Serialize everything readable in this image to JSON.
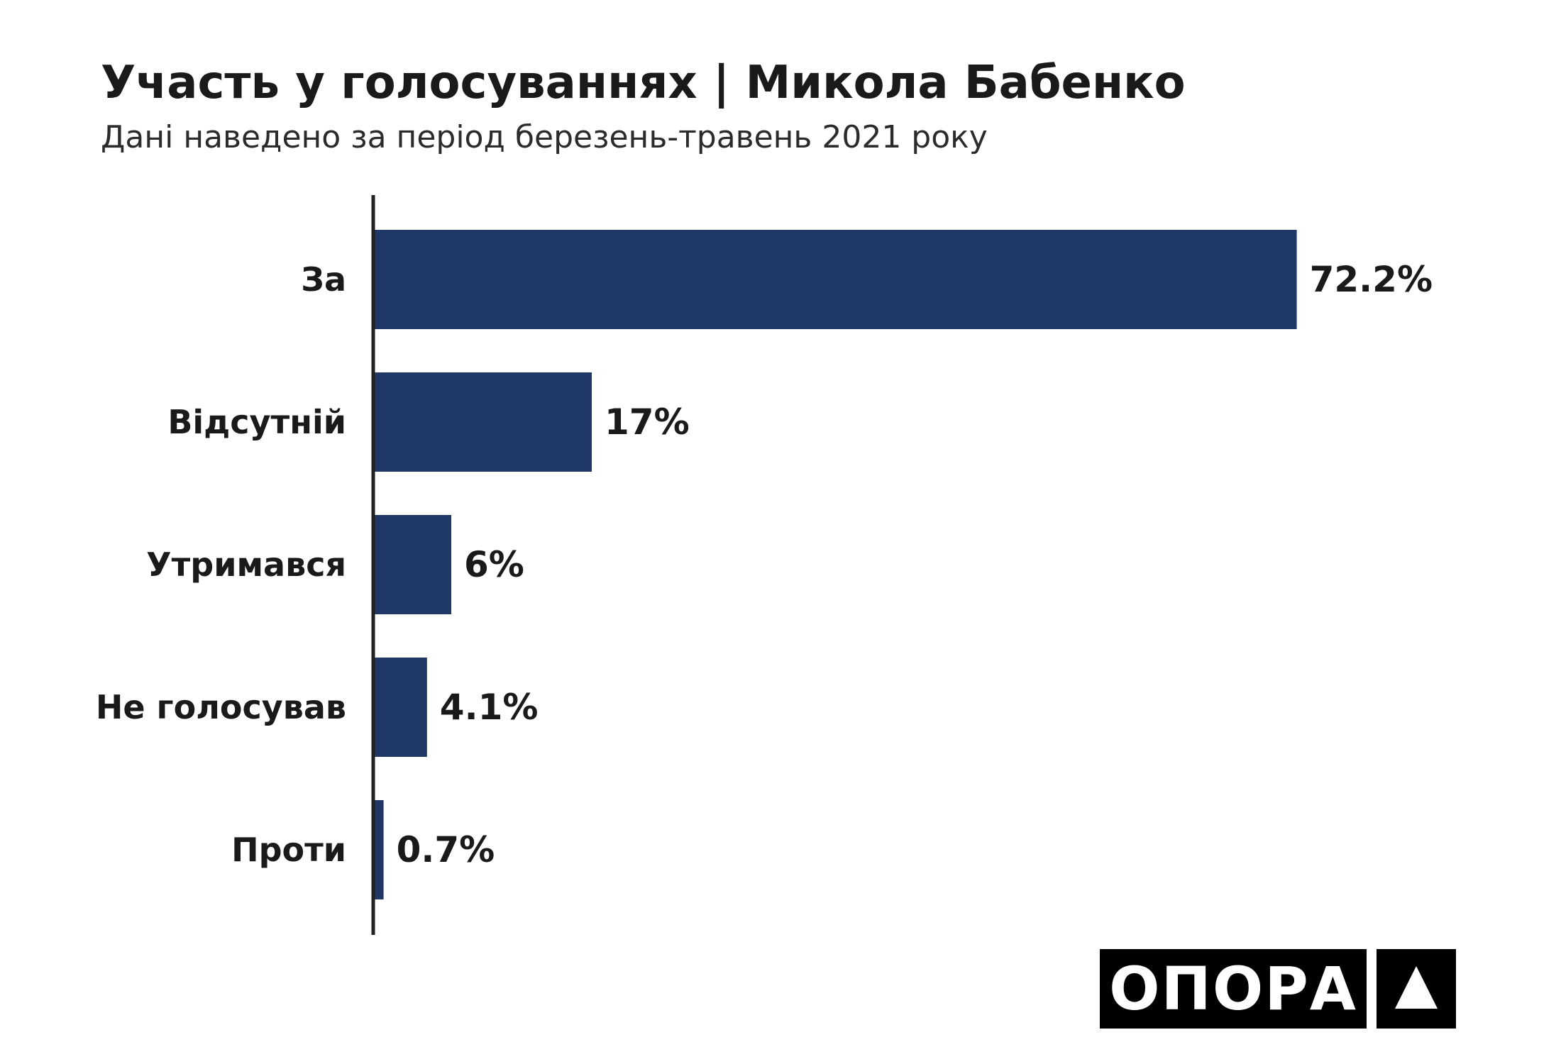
{
  "chart_data": {
    "type": "bar",
    "orientation": "horizontal",
    "title": "Участь у голосуваннях | Микола Бабенко",
    "subtitle": "Дані наведено за період березень-травень 2021 року",
    "categories": [
      "За",
      "Відсутній",
      "Утримався",
      "Не голосував",
      "Проти"
    ],
    "values": [
      72.2,
      17,
      6,
      4.1,
      0.7
    ],
    "value_labels": [
      "72.2%",
      "17%",
      "6%",
      "4.1%",
      "0.7%"
    ],
    "xlim": [
      0,
      100
    ],
    "grid": false,
    "legend": "none",
    "bar_color": "#1f3866"
  },
  "logo": {
    "text": "ОПОРА",
    "mark": "triangle-icon"
  }
}
